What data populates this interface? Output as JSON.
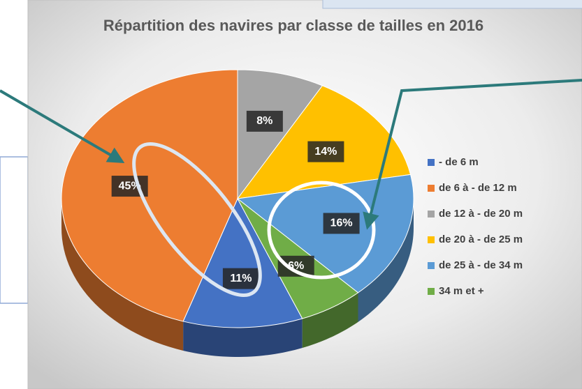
{
  "chart_data": {
    "type": "pie",
    "title": "Répartition des navires par classe de tailles en 2016",
    "categories": [
      "- de 6 m",
      "de 6 à - de 12 m",
      "de 12 à - de 20 m",
      "de 20 à - de 25 m",
      "de 25 à - de 34 m",
      "34 m et +"
    ],
    "values": [
      11,
      45,
      8,
      14,
      16,
      6
    ],
    "value_labels": [
      "11%",
      "45%",
      "8%",
      "14%",
      "16%",
      "6%"
    ],
    "colors": [
      "#4472c4",
      "#ed7d31",
      "#a5a5a5",
      "#ffc000",
      "#5b9bd5",
      "#70ad47"
    ],
    "legend": "right"
  }
}
